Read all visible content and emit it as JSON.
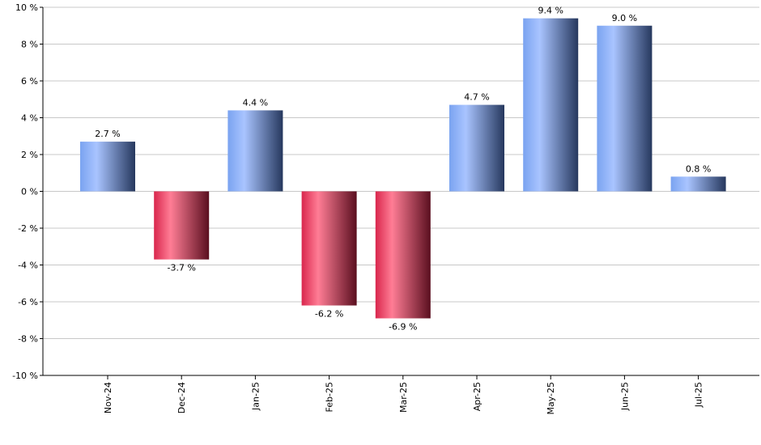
{
  "chart_data": {
    "type": "bar",
    "categories": [
      "Nov-24",
      "Dec-24",
      "Jan-25",
      "Feb-25",
      "Mar-25",
      "Apr-25",
      "May-25",
      "Jun-25",
      "Jul-25"
    ],
    "values": [
      2.7,
      -3.7,
      4.4,
      -6.2,
      -6.9,
      4.7,
      9.4,
      9.0,
      0.8
    ],
    "data_labels": [
      "2.7 %",
      "-3.7 %",
      "4.4 %",
      "-6.2 %",
      "-6.9 %",
      "4.7 %",
      "9.4 %",
      "9.0 %",
      "0.8 %"
    ],
    "y_ticks": [
      10,
      8,
      6,
      4,
      2,
      0,
      -2,
      -4,
      -6,
      -8,
      -10
    ],
    "y_tick_labels": [
      "10 %",
      "8 %",
      "6 %",
      "4 %",
      "2 %",
      "0 %",
      "-2 %",
      "-4 %",
      "-6 %",
      "-8 %",
      "-10 %"
    ],
    "ylim": [
      -10,
      10
    ],
    "title": "",
    "xlabel": "",
    "ylabel": "",
    "grid": true,
    "colors": {
      "positive_light": "#a9c4ff",
      "positive_mid": "#7aa3f0",
      "positive_dark": "#26385e",
      "negative_light": "#ff7d95",
      "negative_mid": "#d9274d",
      "negative_dark": "#5a0f1f",
      "grid": "#c8c8c8",
      "axis": "#000000"
    }
  }
}
